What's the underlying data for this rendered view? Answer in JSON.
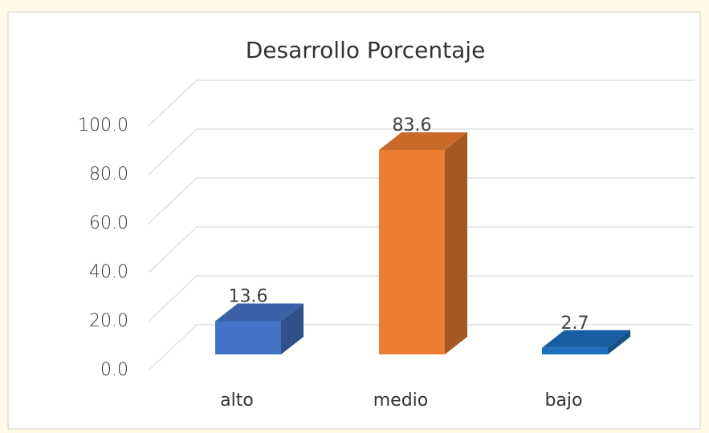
{
  "chart_data": {
    "type": "bar3d",
    "title": "Desarrollo Porcentaje",
    "categories": [
      "alto",
      "medio",
      "bajo"
    ],
    "values": [
      13.6,
      83.6,
      2.7
    ],
    "colors": [
      "#4472c4",
      "#ed7d31",
      "#1f6fbf"
    ],
    "ylim": [
      0,
      100
    ],
    "yticks": [
      {
        "value": 0,
        "label": "0.0"
      },
      {
        "value": 20,
        "label": "20.0"
      },
      {
        "value": 40,
        "label": "40.0"
      },
      {
        "value": 60,
        "label": "60.0"
      },
      {
        "value": 80,
        "label": "80.0"
      },
      {
        "value": 100,
        "label": "100.0"
      }
    ],
    "grid": true
  }
}
